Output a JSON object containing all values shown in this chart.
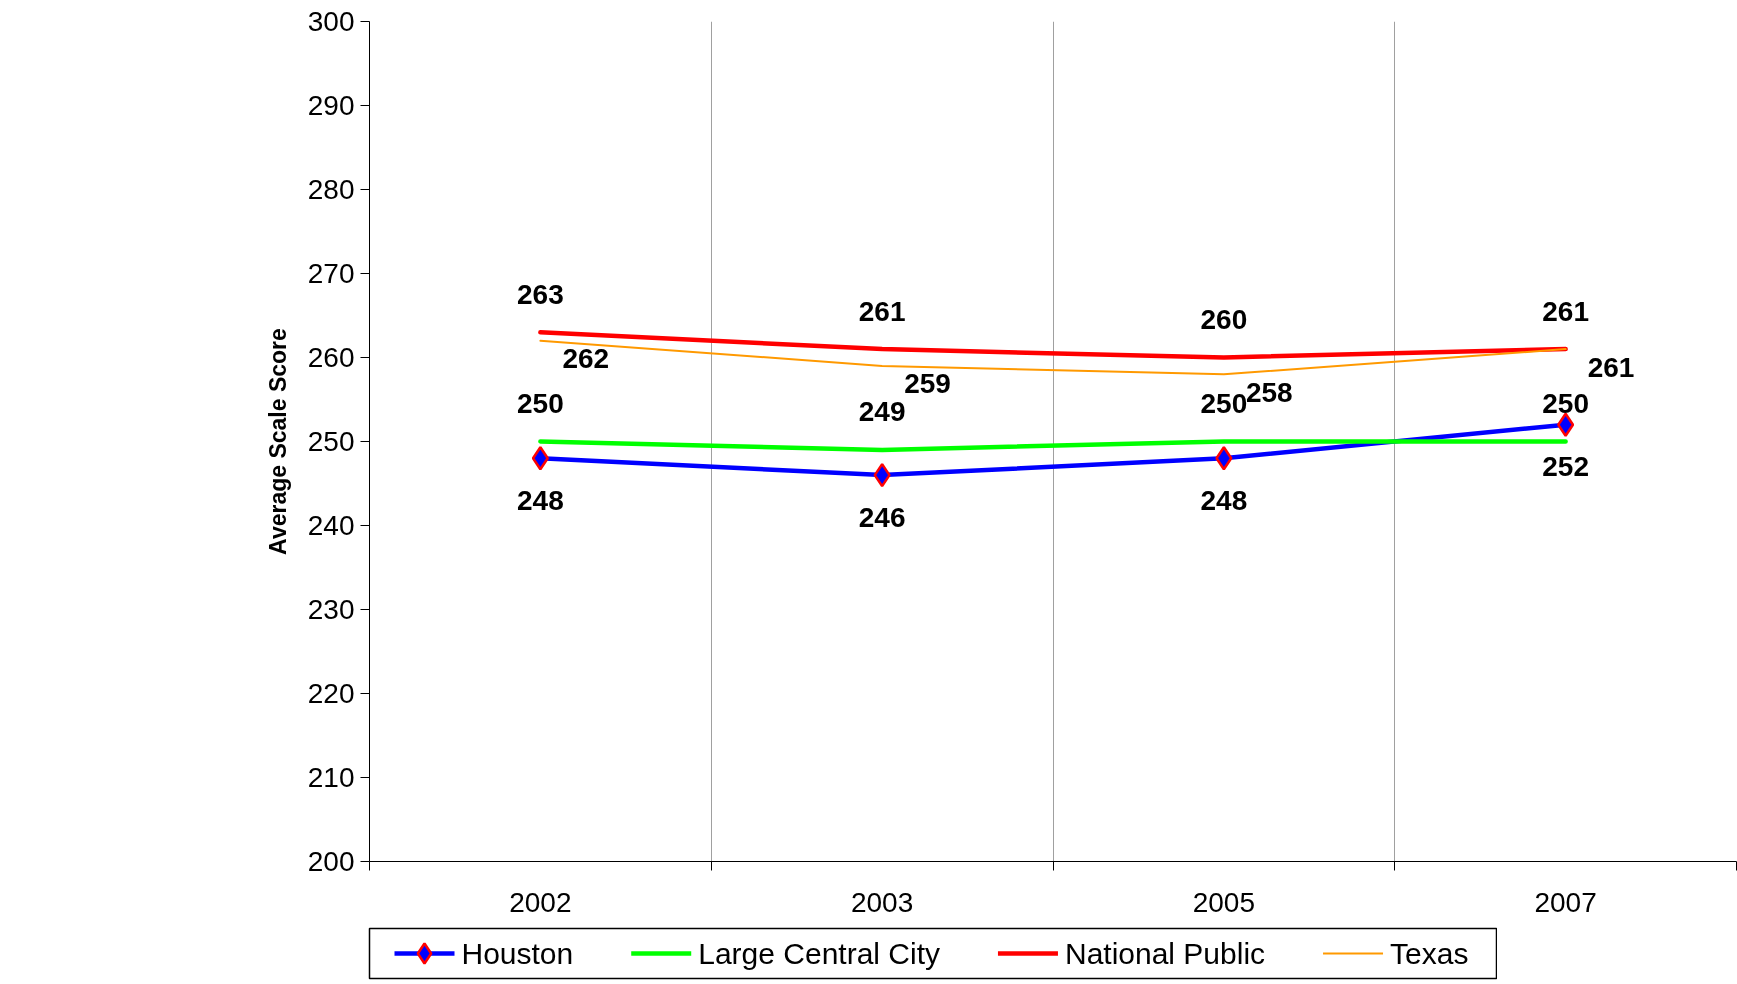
{
  "chart_data": {
    "type": "line",
    "ylabel": "Average Scale Score",
    "categories": [
      "2002",
      "2003",
      "2005",
      "2007"
    ],
    "series": [
      {
        "name": "Houston",
        "color": "#0000ff",
        "values": [
          248,
          246,
          248,
          252
        ],
        "marker": "diamond"
      },
      {
        "name": "Large Central City",
        "color": "#00ff00",
        "values": [
          250,
          249,
          250,
          250
        ]
      },
      {
        "name": "National Public",
        "color": "#ff0000",
        "values": [
          263,
          261,
          260,
          261
        ]
      },
      {
        "name": "Texas",
        "color": "#ff9900",
        "values": [
          262,
          259,
          258,
          261
        ]
      }
    ],
    "ylim": [
      200,
      300
    ],
    "yticks": [
      200,
      210,
      220,
      230,
      240,
      250,
      260,
      270,
      280,
      290,
      300
    ],
    "grid": "x",
    "legend": "bottom",
    "data_labels": true,
    "marker": "none",
    "line_style": "solid"
  }
}
